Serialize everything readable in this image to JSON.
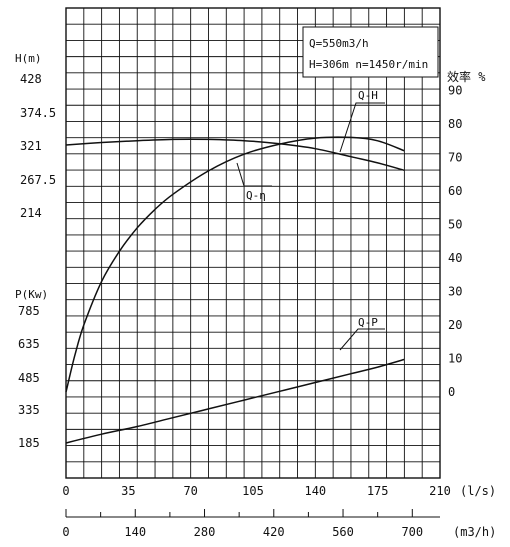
{
  "chart_data": {
    "type": "line",
    "annotation": {
      "line1": "Q=550m3/h",
      "line2": "H=306m  n=1450r/min"
    },
    "left_axis_head": {
      "label": "H(m)",
      "ticks": [
        "428",
        "374.5",
        "321",
        "267.5",
        "214"
      ]
    },
    "left_axis_power": {
      "label": "P(Kw)",
      "ticks": [
        "785",
        "635",
        "485",
        "335",
        "185"
      ]
    },
    "right_axis": {
      "label": "效率 %",
      "ticks": [
        "90",
        "80",
        "70",
        "60",
        "50",
        "40",
        "30",
        "20",
        "10",
        "0"
      ]
    },
    "x_axis_ls": {
      "ticks": [
        "0",
        "35",
        "70",
        "105",
        "140",
        "175",
        "210"
      ],
      "unit": "(l/s)"
    },
    "x_axis_m3h": {
      "ticks": [
        "0",
        "140",
        "280",
        "420",
        "560",
        "700"
      ],
      "unit": "(m3/h)"
    },
    "series": [
      {
        "name": "Q-H",
        "label": "Q-H",
        "x": [
          0,
          20,
          40,
          60,
          80,
          100,
          120,
          140,
          160,
          175,
          190
        ],
        "y": [
          321,
          325,
          328,
          330,
          330,
          328,
          323,
          315,
          302,
          292,
          280
        ],
        "axis": "head"
      },
      {
        "name": "Q-η",
        "label": "Q-η",
        "x": [
          0,
          5,
          10,
          20,
          30,
          40,
          50,
          60,
          80,
          100,
          120,
          140,
          160,
          175,
          190
        ],
        "y": [
          0,
          11,
          20,
          33,
          42,
          49,
          54.5,
          59,
          66,
          71,
          74,
          75.8,
          76,
          75,
          72
        ],
        "axis": "efficiency"
      },
      {
        "name": "Q-P",
        "label": "Q-P",
        "x": [
          0,
          20,
          40,
          60,
          80,
          100,
          120,
          140,
          160,
          175,
          190
        ],
        "y": [
          185,
          225,
          260,
          300,
          340,
          380,
          420,
          460,
          500,
          530,
          565
        ],
        "axis": "power"
      }
    ],
    "colors": {
      "line": "#111111",
      "grid": "#111111",
      "background": "#ffffff"
    },
    "grid": true
  }
}
